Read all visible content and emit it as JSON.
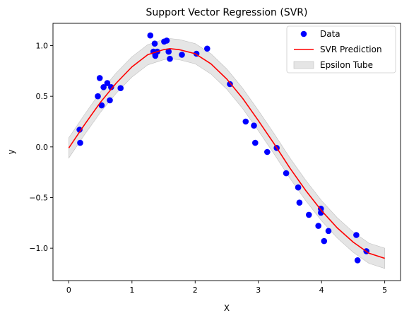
{
  "chart_data": {
    "type": "scatter",
    "title": "Support Vector Regression (SVR)",
    "xlabel": "X",
    "ylabel": "y",
    "xlim": [
      -0.25,
      5.25
    ],
    "ylim": [
      -1.32,
      1.22
    ],
    "x_ticks": [
      0,
      1,
      2,
      3,
      4,
      5
    ],
    "x_tick_labels": [
      "0",
      "1",
      "2",
      "3",
      "4",
      "5"
    ],
    "y_ticks": [
      -1.0,
      -0.5,
      0.0,
      0.5,
      1.0
    ],
    "y_tick_labels": [
      "−1.0",
      "−0.5",
      "0.0",
      "0.5",
      "1.0"
    ],
    "grid": false,
    "legend_position": "top-right",
    "legend": [
      "Data",
      "SVR Prediction",
      "Epsilon Tube"
    ],
    "epsilon": 0.1,
    "series": [
      {
        "name": "Data",
        "kind": "scatter",
        "color": "#0000ff",
        "points": [
          [
            0.17,
            0.17
          ],
          [
            0.18,
            0.04
          ],
          [
            0.46,
            0.5
          ],
          [
            0.49,
            0.68
          ],
          [
            0.52,
            0.41
          ],
          [
            0.55,
            0.59
          ],
          [
            0.61,
            0.63
          ],
          [
            0.65,
            0.46
          ],
          [
            0.67,
            0.59
          ],
          [
            0.82,
            0.58
          ],
          [
            1.29,
            1.1
          ],
          [
            1.34,
            0.94
          ],
          [
            1.36,
            1.02
          ],
          [
            1.37,
            0.9
          ],
          [
            1.4,
            0.94
          ],
          [
            1.51,
            1.04
          ],
          [
            1.55,
            1.05
          ],
          [
            1.58,
            0.94
          ],
          [
            1.6,
            0.87
          ],
          [
            1.79,
            0.91
          ],
          [
            2.02,
            0.92
          ],
          [
            2.19,
            0.97
          ],
          [
            2.55,
            0.62
          ],
          [
            2.8,
            0.25
          ],
          [
            2.93,
            0.21
          ],
          [
            2.95,
            0.04
          ],
          [
            3.14,
            -0.05
          ],
          [
            3.29,
            -0.01
          ],
          [
            3.44,
            -0.26
          ],
          [
            3.63,
            -0.4
          ],
          [
            3.65,
            -0.55
          ],
          [
            3.8,
            -0.67
          ],
          [
            3.95,
            -0.78
          ],
          [
            3.99,
            -0.61
          ],
          [
            3.99,
            -0.65
          ],
          [
            4.04,
            -0.93
          ],
          [
            4.11,
            -0.83
          ],
          [
            4.55,
            -0.87
          ],
          [
            4.57,
            -1.12
          ],
          [
            4.71,
            -1.03
          ]
        ]
      },
      {
        "name": "SVR Prediction",
        "kind": "line",
        "color": "#ff0000",
        "points": [
          [
            0.0,
            -0.01
          ],
          [
            0.25,
            0.22
          ],
          [
            0.5,
            0.44
          ],
          [
            0.75,
            0.63
          ],
          [
            1.0,
            0.79
          ],
          [
            1.25,
            0.91
          ],
          [
            1.5,
            0.96
          ],
          [
            1.6,
            0.97
          ],
          [
            1.75,
            0.96
          ],
          [
            2.0,
            0.92
          ],
          [
            2.25,
            0.82
          ],
          [
            2.5,
            0.67
          ],
          [
            2.75,
            0.48
          ],
          [
            3.0,
            0.26
          ],
          [
            3.25,
            0.03
          ],
          [
            3.5,
            -0.21
          ],
          [
            3.75,
            -0.43
          ],
          [
            4.0,
            -0.63
          ],
          [
            4.25,
            -0.8
          ],
          [
            4.5,
            -0.94
          ],
          [
            4.75,
            -1.05
          ],
          [
            5.0,
            -1.1
          ]
        ]
      },
      {
        "name": "Epsilon Tube",
        "kind": "band",
        "color": "#d3d3d3"
      }
    ]
  }
}
